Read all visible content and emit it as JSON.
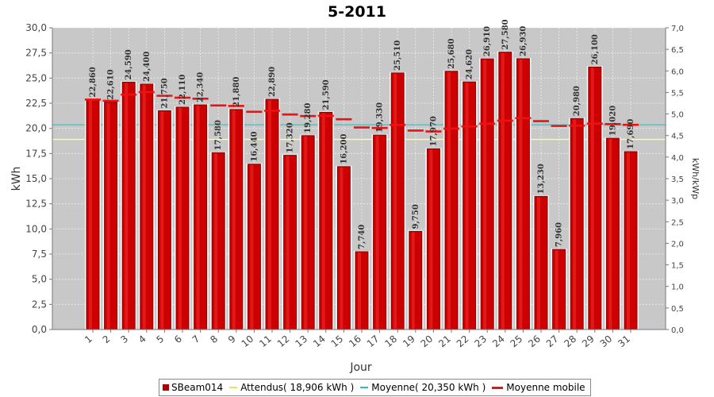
{
  "chart_data": {
    "type": "bar",
    "title": "5-2011",
    "xlabel": "Jour",
    "ylabel": "kWh",
    "y2label": "kWh/kWp",
    "ylim": [
      0,
      30
    ],
    "y2lim": [
      0,
      7.0
    ],
    "yticks": [
      "0,0",
      "2,5",
      "5,0",
      "7,5",
      "10,0",
      "12,5",
      "15,0",
      "17,5",
      "20,0",
      "22,5",
      "25,0",
      "27,5",
      "30,0"
    ],
    "y2ticks": [
      "0,0",
      "0,5",
      "1,0",
      "1,5",
      "2,0",
      "2,5",
      "3,0",
      "3,5",
      "4,0",
      "4,5",
      "5,0",
      "5,5",
      "6,0",
      "6,5",
      "7,0"
    ],
    "categories": [
      "1",
      "2",
      "3",
      "4",
      "5",
      "6",
      "7",
      "8",
      "9",
      "10",
      "11",
      "12",
      "13",
      "14",
      "15",
      "16",
      "17",
      "18",
      "19",
      "20",
      "21",
      "22",
      "23",
      "24",
      "25",
      "26",
      "27",
      "28",
      "29",
      "30",
      "31"
    ],
    "series": [
      {
        "name": "SBeam014",
        "type": "bar",
        "color": "#cc0000",
        "values": [
          22.86,
          22.61,
          24.59,
          24.4,
          21.75,
          22.11,
          22.34,
          17.58,
          21.88,
          16.44,
          22.89,
          17.32,
          19.28,
          21.59,
          16.2,
          7.74,
          19.33,
          25.51,
          9.75,
          17.97,
          25.68,
          24.62,
          26.91,
          27.58,
          26.93,
          13.23,
          7.96,
          20.98,
          26.1,
          19.02,
          17.69
        ],
        "labels": [
          "22,860",
          "22,610",
          "24,590",
          "24,400",
          "21,750",
          "22,110",
          "22,340",
          "17,580",
          "21,880",
          "16,440",
          "22,890",
          "17,320",
          "19,280",
          "21,590",
          "16,200",
          "7,740",
          "19,330",
          "25,510",
          "9,750",
          "17,970",
          "25,680",
          "24,620",
          "26,910",
          "27,580",
          "26,930",
          "13,230",
          "7,960",
          "20,980",
          "26,100",
          "19,020",
          "17,690"
        ]
      },
      {
        "name": "Attendus( 18,906 kWh )",
        "type": "hline",
        "color": "#ffff99",
        "value": 18.906
      },
      {
        "name": "Moyenne( 20,350 kWh )",
        "type": "hline",
        "color": "#33cccc",
        "value": 20.35
      },
      {
        "name": "Moyenne mobile",
        "type": "dashed-steps",
        "color": "#ee1111",
        "values": [
          22.86,
          22.74,
          23.35,
          23.61,
          23.24,
          23.05,
          22.95,
          22.28,
          22.23,
          21.65,
          21.75,
          21.38,
          21.22,
          21.25,
          20.91,
          20.09,
          20.04,
          20.34,
          19.78,
          19.69,
          19.98,
          20.19,
          20.47,
          20.77,
          21.02,
          20.72,
          20.24,
          20.27,
          20.47,
          20.42,
          20.35
        ]
      }
    ],
    "grid": true,
    "legend_position": "bottom"
  },
  "legend": {
    "items": [
      {
        "label": "SBeam014",
        "color": "#aa0000",
        "kind": "box"
      },
      {
        "label": "Attendus( 18,906 kWh )",
        "color": "#e8e060",
        "kind": "line"
      },
      {
        "label": "Moyenne( 20,350 kWh )",
        "color": "#33bbbb",
        "kind": "line"
      },
      {
        "label": "Moyenne mobile",
        "color": "#ee1111",
        "kind": "dash"
      }
    ]
  }
}
